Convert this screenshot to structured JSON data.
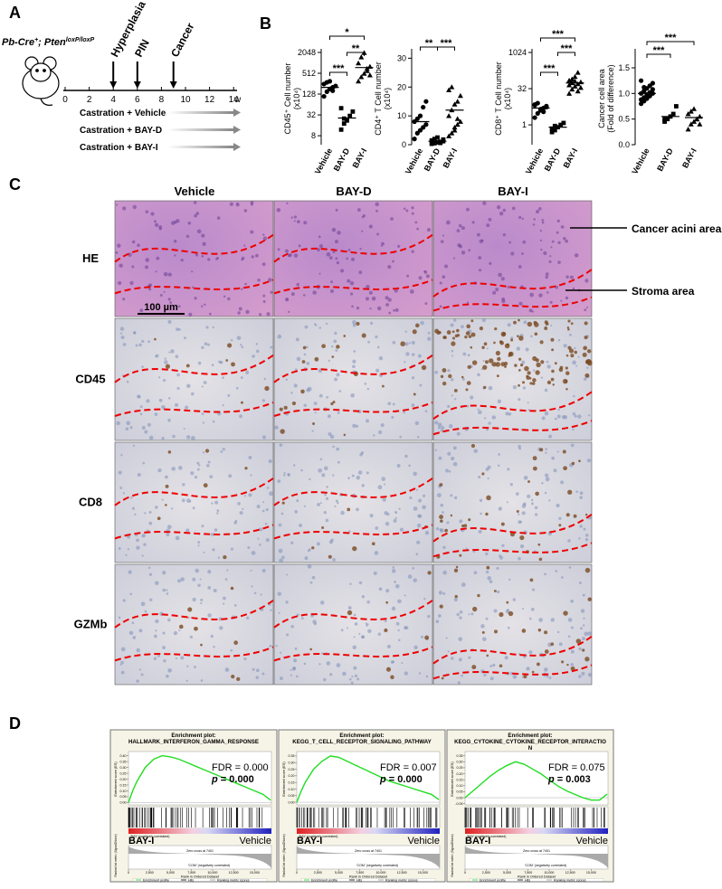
{
  "panel_a": {
    "label": "A",
    "genotype": [
      "Pb-Cre",
      "+",
      "; Pten",
      "loxP/loxP"
    ],
    "timeline": {
      "ticks": [
        0,
        2,
        4,
        6,
        8,
        10,
        12,
        14
      ],
      "unit": "w"
    },
    "events": [
      {
        "label": "Hyperplasia",
        "week": 4
      },
      {
        "label": "PIN",
        "week": 6
      },
      {
        "label": "Cancer",
        "week": 9
      }
    ],
    "arms": [
      "Castration + Vehicle",
      "Castration + BAY-D",
      "Castration + BAY-I"
    ]
  },
  "panel_b": {
    "label": "B",
    "charts": [
      {
        "type": "scatter",
        "ylabel": "CD45⁺ Cell number",
        "yunit": "(x10⁴)",
        "categories": [
          "Vehicle",
          "BAY-D",
          "BAY-I"
        ],
        "groups": [
          [
            110,
            150,
            180,
            200,
            220,
            250,
            280,
            300,
            160
          ],
          [
            12,
            18,
            22,
            30,
            40,
            50,
            25
          ],
          [
            300,
            400,
            500,
            600,
            800,
            1000,
            1500,
            2000,
            700,
            450
          ]
        ],
        "means": [
          200,
          26,
          750
        ],
        "log": true,
        "ylim": [
          4.4,
          2048
        ],
        "yticks": [
          8,
          32,
          128,
          512,
          2048
        ],
        "significance": [
          "***",
          "**",
          "*"
        ]
      },
      {
        "type": "scatter",
        "ylabel": "CD4⁺ T Cell number",
        "yunit": "(x10⁴)",
        "categories": [
          "Vehicle",
          "BAY-D",
          "BAY-I"
        ],
        "groups": [
          [
            2,
            4,
            5,
            6,
            7,
            8,
            9,
            10,
            13,
            15
          ],
          [
            0.3,
            0.5,
            0.8,
            1,
            1.2,
            1.5,
            2,
            2.5,
            0.6,
            1.8
          ],
          [
            3,
            4,
            5,
            7,
            8,
            10,
            12,
            14,
            15,
            17,
            19,
            20,
            6,
            9
          ]
        ],
        "means": [
          8,
          1.2,
          12
        ],
        "log": false,
        "ylim": [
          0,
          32
        ],
        "yticks": [
          0,
          10,
          20,
          30
        ],
        "significance": [
          "**",
          "***"
        ]
      },
      {
        "type": "scatter",
        "ylabel": "CD8⁺ T Cell number",
        "yunit": "(x10⁴)",
        "categories": [
          "Vehicle",
          "BAY-D",
          "BAY-I"
        ],
        "groups": [
          [
            2,
            3,
            4,
            5,
            6,
            7,
            8,
            4.5,
            3.5,
            5.5,
            6.5
          ],
          [
            0.5,
            0.6,
            0.8,
            1,
            1.2,
            0.7,
            0.9
          ],
          [
            20,
            30,
            40,
            50,
            60,
            70,
            80,
            100,
            150,
            35,
            45,
            55,
            65,
            25
          ]
        ],
        "means": [
          5,
          0.8,
          55
        ],
        "log": true,
        "ylim": [
          0.15,
          1024
        ],
        "yticks": [
          1,
          32,
          1024
        ],
        "significance": [
          "***",
          "***",
          "***"
        ]
      },
      {
        "type": "scatter",
        "ylabel": "Cancer cell area",
        "yunit": "(Fold of difference)",
        "categories": [
          "Vehicle",
          "BAY-D",
          "BAY-I"
        ],
        "groups": [
          [
            0.8,
            0.85,
            0.9,
            0.95,
            1.0,
            1.0,
            1.05,
            1.1,
            1.15,
            1.2,
            1.25,
            0.92,
            0.98,
            1.02,
            1.08,
            0.88,
            1.12
          ],
          [
            0.45,
            0.5,
            0.55,
            0.6,
            0.75,
            0.5
          ],
          [
            0.3,
            0.4,
            0.45,
            0.5,
            0.55,
            0.6,
            0.65,
            0.7,
            0.5,
            0.4
          ]
        ],
        "means": [
          1.0,
          0.55,
          0.53
        ],
        "log": false,
        "ylim": [
          0,
          1.8
        ],
        "yticks": [
          {
            "value": 0,
            "label": "0.0"
          },
          0.5,
          {
            "value": 1,
            "label": "1.0"
          },
          1.5
        ],
        "significance": [
          "***",
          "***"
        ]
      }
    ]
  },
  "panel_c": {
    "label": "C",
    "columns": [
      "Vehicle",
      "BAY-D",
      "BAY-I"
    ],
    "rows": [
      "HE",
      "CD45",
      "CD8",
      "GZMb"
    ],
    "annotations": [
      "Cancer acini area",
      "Stroma area"
    ],
    "scale_bar": "100 µm"
  },
  "panel_d": {
    "label": "D",
    "common": {
      "left": "BAY-I",
      "right": "Vehicle",
      "pos": "'BAY' (positively correlated)",
      "neg": "'COM' (negatively correlated)",
      "zero": "Zero cross at 7401",
      "ylabel": "Enrichment score (ES)",
      "metric_label": "Ranked list metric (Signal2Noise)",
      "xlabel": "Rank in Ordered Dataset",
      "xlim": [
        0,
        17000
      ],
      "xticks": [
        0,
        {
          "value": 2500,
          "label": "2,500"
        },
        {
          "value": 5000,
          "label": "5,000"
        },
        {
          "value": 7500,
          "label": "7,500"
        },
        {
          "value": 10000,
          "label": "10,000"
        },
        {
          "value": 12500,
          "label": "12,500"
        },
        {
          "value": 15000,
          "label": "15,000"
        }
      ],
      "legend": [
        "Enrichment profile",
        "Hits",
        "Ranking metric scores"
      ]
    },
    "plots": [
      {
        "type": "line",
        "title": [
          "Enrichment plot:",
          "HALLMARK_INTERFERON_GAMMA_RESPONSE"
        ],
        "fdr": "FDR = 0.000",
        "p_symbol": "p",
        "p_value": " = 0.000",
        "color": "#22dd22",
        "x": [
          0,
          500,
          1000,
          2000,
          3000,
          4000,
          5000,
          6000,
          7000,
          8000,
          9000,
          10000,
          11000,
          12000,
          13000,
          14000,
          15000,
          16000,
          16900
        ],
        "values": [
          0,
          0.1,
          0.18,
          0.3,
          0.37,
          0.4,
          0.39,
          0.37,
          0.34,
          0.31,
          0.28,
          0.25,
          0.22,
          0.19,
          0.16,
          0.13,
          0.1,
          0.07,
          0.02
        ],
        "ylim": [
          -0.02,
          0.42
        ],
        "yticks": [
          {
            "value": 0,
            "label": "0.00"
          },
          0.05,
          {
            "value": 0.1,
            "label": "0.10"
          },
          0.15,
          {
            "value": 0.2,
            "label": "0.20"
          },
          0.25,
          {
            "value": 0.3,
            "label": "0.30"
          },
          0.35,
          {
            "value": 0.4,
            "label": "0.40"
          }
        ]
      },
      {
        "type": "line",
        "title": [
          "Enrichment plot:",
          "KEGG_T_CELL_RECEPTOR_SIGNALING_PATHWAY"
        ],
        "fdr": "FDR = 0.007",
        "p_symbol": "p",
        "p_value": " = 0.000",
        "color": "#22dd22",
        "x": [
          0,
          500,
          1000,
          2000,
          3000,
          4000,
          5000,
          6000,
          7000,
          8000,
          9000,
          10000,
          11000,
          12000,
          13000,
          14000,
          15000,
          16000,
          16900
        ],
        "values": [
          0,
          0.08,
          0.15,
          0.25,
          0.31,
          0.35,
          0.34,
          0.31,
          0.28,
          0.25,
          0.22,
          0.19,
          0.16,
          0.14,
          0.12,
          0.1,
          0.08,
          0.06,
          0.02
        ],
        "ylim": [
          -0.02,
          0.37
        ],
        "yticks": [
          {
            "value": 0,
            "label": "0.00"
          },
          0.05,
          {
            "value": 0.1,
            "label": "0.10"
          },
          0.15,
          {
            "value": 0.2,
            "label": "0.20"
          },
          0.25,
          {
            "value": 0.3,
            "label": "0.30"
          },
          0.35
        ]
      },
      {
        "type": "line",
        "title": [
          "Enrichment plot:",
          "KEGG_CYTOKINE_CYTOKINE_RECEPTOR_INTERACTIO",
          "N"
        ],
        "fdr": "FDR = 0.075",
        "p_symbol": "p",
        "p_value": " = 0.003",
        "color": "#22dd22",
        "x": [
          0,
          500,
          1000,
          2000,
          3000,
          4000,
          5000,
          6000,
          7000,
          8000,
          9000,
          10000,
          11000,
          12000,
          13000,
          14000,
          15000,
          16000,
          16900
        ],
        "values": [
          0,
          0.03,
          0.06,
          0.12,
          0.18,
          0.23,
          0.27,
          0.3,
          0.28,
          0.24,
          0.2,
          0.15,
          0.1,
          0.06,
          0.03,
          0.0,
          -0.02,
          -0.02,
          0.03
        ],
        "ylim": [
          -0.06,
          0.37
        ],
        "yticks": [
          -0.05,
          {
            "value": 0,
            "label": "0.00"
          },
          0.05,
          {
            "value": 0.1,
            "label": "0.10"
          },
          0.15,
          {
            "value": 0.2,
            "label": "0.20"
          },
          0.25,
          {
            "value": 0.3,
            "label": "0.30"
          },
          0.35
        ]
      }
    ]
  }
}
